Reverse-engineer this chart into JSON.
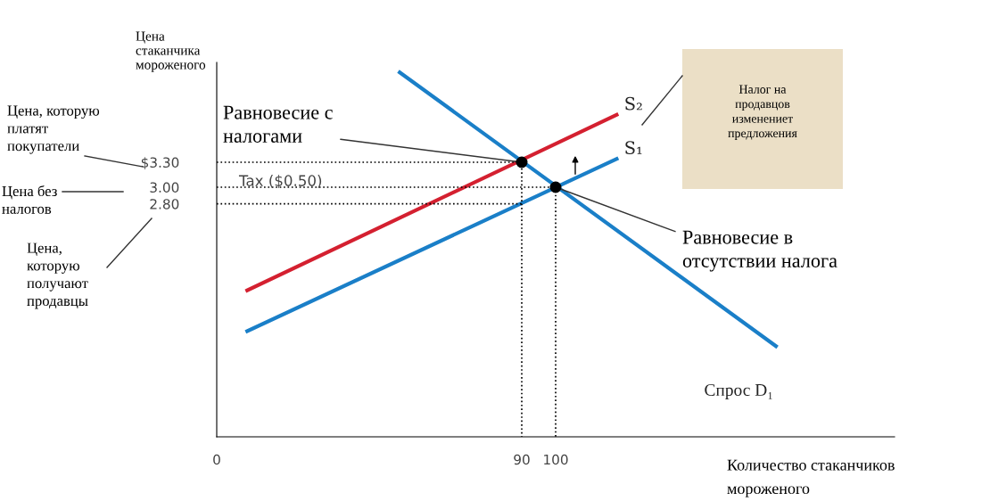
{
  "chart_data": {
    "type": "line",
    "title": null,
    "ylabel": "Цена\nстаканчика\nмороженого",
    "xlabel": "Количество стаканчиков\nмороженого",
    "xlim": [
      0,
      200
    ],
    "ylim": [
      0,
      4.5
    ],
    "xticks": [
      0,
      90,
      100
    ],
    "yticks": [
      {
        "value": 2.8,
        "label": "2.80"
      },
      {
        "value": 3,
        "label": "3.00"
      },
      {
        "value": 3.3,
        "label": "$3.30"
      }
    ],
    "grid": false,
    "legend": false,
    "series": [
      {
        "name": "Спрос D₁",
        "color": "#1a7fc8",
        "x": [
          54,
          165
        ],
        "values": [
          4.38,
          1.09
        ]
      },
      {
        "name": "S₁",
        "color": "#1a7fc8",
        "x": [
          9,
          118
        ],
        "values": [
          1.27,
          3.34
        ]
      },
      {
        "name": "S₂",
        "color": "#d42030",
        "x": [
          9,
          118
        ],
        "values": [
          1.76,
          3.87
        ]
      },
      {
        "color": "#000000",
        "line_style": "dotted",
        "x": [
          0,
          90,
          90
        ],
        "values": [
          3.3,
          3.3,
          0
        ]
      },
      {
        "color": "#000000",
        "line_style": "dotted",
        "x": [
          0,
          100,
          100
        ],
        "values": [
          3.0,
          3.0,
          0
        ]
      },
      {
        "color": "#000000",
        "line_style": "dotted",
        "x": [
          0,
          90
        ],
        "values": [
          2.8,
          2.8
        ]
      },
      {
        "type": "scatter",
        "marker": "circle",
        "color": "#000000",
        "x": [
          90,
          100
        ],
        "values": [
          3.3,
          3.0
        ]
      }
    ],
    "annotations": [
      "Цена, которую\nплатят\nпокупатели",
      "Цена без\nналогов",
      "Цена,\nкоторую\nполучают\nпродавцы",
      {
        "text": "Равновесие с\nналогами",
        "x": 90,
        "y": 3.3
      },
      {
        "text": "Равновесие в\nотсутствии налога",
        "x": 100,
        "y": 3.0
      },
      "Налог на\nпродавцов\nизменениет\nпредложения",
      "Tax ($0.50)"
    ]
  }
}
